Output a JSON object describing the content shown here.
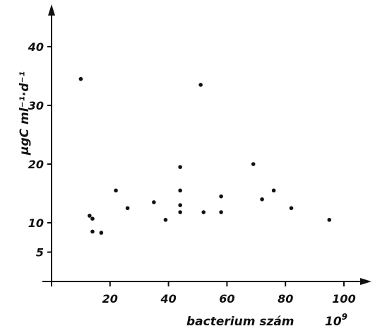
{
  "chart_data": {
    "type": "scatter",
    "title": "",
    "xlabel": "bacterium szám",
    "xlabel_multiplier": "10",
    "xlabel_multiplier_exp": "9",
    "ylabel": "µgC ml⁻¹·d⁻¹",
    "xlim": [
      0,
      110
    ],
    "ylim": [
      0,
      48
    ],
    "xticks": [
      20,
      40,
      60,
      80,
      100
    ],
    "xtick_labels": [
      "20",
      "40",
      "60",
      "80",
      "100"
    ],
    "yticks": [
      5,
      10,
      20,
      30,
      40
    ],
    "ytick_labels": [
      "5",
      "10",
      "20",
      "30",
      "40"
    ],
    "grid": false,
    "legend": "none",
    "color": "#111111",
    "points": [
      {
        "x": 10,
        "y": 34.5
      },
      {
        "x": 13,
        "y": 11.2
      },
      {
        "x": 14,
        "y": 10.7
      },
      {
        "x": 14,
        "y": 8.5
      },
      {
        "x": 17,
        "y": 8.3
      },
      {
        "x": 22,
        "y": 15.5
      },
      {
        "x": 26,
        "y": 12.5
      },
      {
        "x": 35,
        "y": 13.5
      },
      {
        "x": 39,
        "y": 10.5
      },
      {
        "x": 44,
        "y": 19.5
      },
      {
        "x": 44,
        "y": 15.5
      },
      {
        "x": 44,
        "y": 13
      },
      {
        "x": 44,
        "y": 11.8
      },
      {
        "x": 51,
        "y": 33.5
      },
      {
        "x": 52,
        "y": 11.8
      },
      {
        "x": 58,
        "y": 14.5
      },
      {
        "x": 58,
        "y": 11.8
      },
      {
        "x": 69,
        "y": 20
      },
      {
        "x": 72,
        "y": 14
      },
      {
        "x": 76,
        "y": 15.5
      },
      {
        "x": 82,
        "y": 12.5
      },
      {
        "x": 95,
        "y": 10.5
      }
    ]
  }
}
